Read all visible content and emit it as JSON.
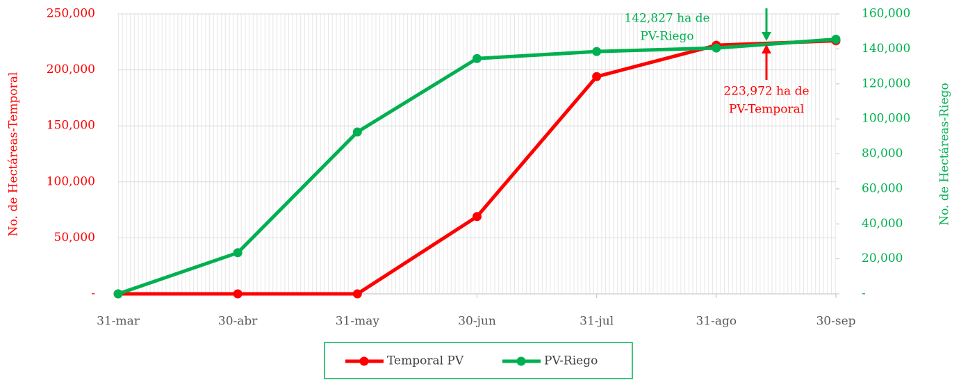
{
  "chart_data": {
    "type": "line",
    "categories": [
      "31-mar",
      "30-abr",
      "31-may",
      "30-jun",
      "31-jul",
      "31-ago",
      "30-sep"
    ],
    "series": [
      {
        "name": "Temporal PV",
        "color": "#ff0000",
        "axis": "y",
        "values": [
          0,
          0,
          0,
          69000,
          194000,
          222000,
          226000
        ]
      },
      {
        "name": "PV-Riego",
        "color": "#00b050",
        "axis": "y2",
        "values": [
          0,
          23500,
          92500,
          134500,
          138500,
          140500,
          145500
        ]
      }
    ],
    "ylabel": "No. de Hectáreas-Temporal",
    "y2label": "No. de Hectáreas-Riego",
    "ylim": [
      0,
      250000
    ],
    "yticks": [
      {
        "value": 0,
        "label": "-"
      },
      {
        "value": 50000,
        "label": "50,000"
      },
      {
        "value": 100000,
        "label": "100,000"
      },
      {
        "value": 150000,
        "label": "150,000"
      },
      {
        "value": 200000,
        "label": "200,000"
      },
      {
        "value": 250000,
        "label": "250,000"
      }
    ],
    "y2lim": [
      0,
      160000
    ],
    "y2ticks": [
      {
        "value": 0,
        "label": "-"
      },
      {
        "value": 20000,
        "label": "20,000"
      },
      {
        "value": 40000,
        "label": "40,000"
      },
      {
        "value": 60000,
        "label": "60,000"
      },
      {
        "value": 80000,
        "label": "80,000"
      },
      {
        "value": 100000,
        "label": "100,000"
      },
      {
        "value": 120000,
        "label": "120,000"
      },
      {
        "value": 140000,
        "label": "140,000"
      },
      {
        "value": 160000,
        "label": "160,000"
      }
    ],
    "annotations": [
      {
        "lines": [
          "142,827 ha de",
          "PV-Riego"
        ],
        "color": "#00b050"
      },
      {
        "lines": [
          "223,972 ha de",
          "PV-Temporal"
        ],
        "color": "#ff0000"
      }
    ],
    "grid": true,
    "legend": "bottom"
  }
}
